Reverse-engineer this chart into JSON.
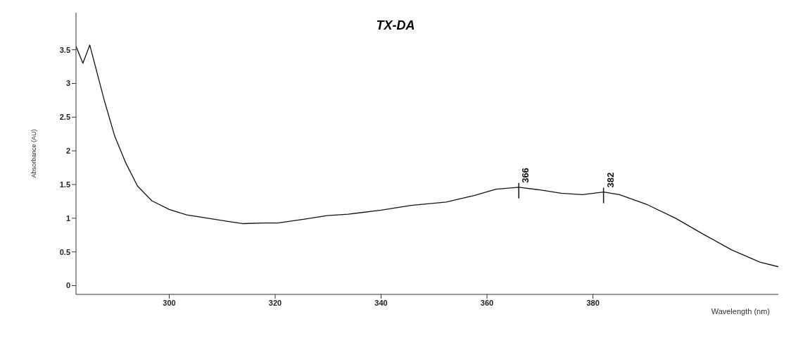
{
  "chart_data": {
    "type": "line",
    "title": "TX-DA",
    "xlabel": "Wavelength (nm)",
    "ylabel": "Absorbance (AU)",
    "x": [
      282.4,
      283.7,
      285,
      287.7,
      289.7,
      291.8,
      294,
      296.7,
      300,
      303.3,
      307.3,
      311.3,
      314,
      317.9,
      320.5,
      325.8,
      329.8,
      333.8,
      340,
      345.7,
      352.3,
      357.7,
      361.7,
      366,
      370,
      374,
      378,
      382,
      385,
      390.3,
      395.6,
      400.9,
      406.2,
      411.5,
      415
    ],
    "series": [
      {
        "color": "#111111",
        "values": [
          3.55,
          3.3,
          3.57,
          2.76,
          2.22,
          1.82,
          1.48,
          1.26,
          1.13,
          1.05,
          1.0,
          0.95,
          0.92,
          0.93,
          0.93,
          0.99,
          1.04,
          1.06,
          1.12,
          1.19,
          1.24,
          1.34,
          1.43,
          1.46,
          1.42,
          1.37,
          1.35,
          1.39,
          1.35,
          1.2,
          1.0,
          0.76,
          0.53,
          0.35,
          0.28
        ]
      }
    ],
    "annotations": [
      {
        "text": "366",
        "x": 366,
        "y": 1.46
      },
      {
        "text": "382",
        "x": 382,
        "y": 1.39
      }
    ],
    "xlim": [
      282.4,
      415
    ],
    "xticks": [
      300,
      320,
      340,
      360,
      380
    ],
    "ylim": [
      -0.13,
      4.05
    ],
    "yticks": [
      0,
      0.5,
      1,
      1.5,
      2,
      2.5,
      3,
      3.5
    ],
    "grid": false,
    "legend": false,
    "marker": "none",
    "line_style": "solid"
  }
}
